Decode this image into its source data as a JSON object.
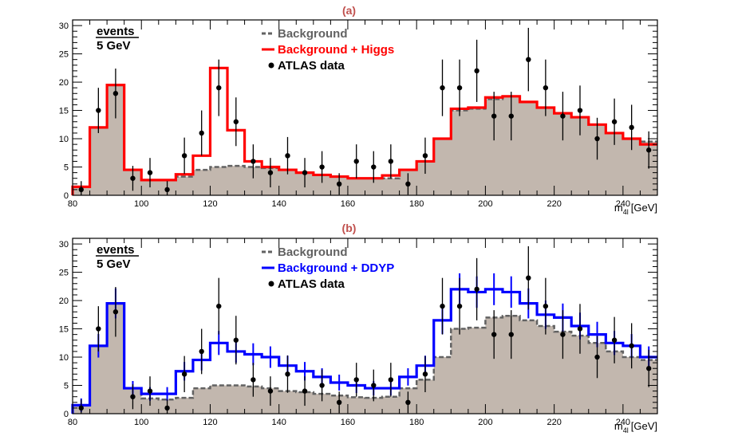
{
  "chart_data": [
    {
      "type": "histogram",
      "panel_label": "(a)",
      "xlabel": "m",
      "xlabel_sub": "4l",
      "xlabel_unit": "[GeV]",
      "ylabel_num": "events",
      "ylabel_den": "5 GeV",
      "xlim": [
        80,
        250
      ],
      "ylim": [
        0,
        31
      ],
      "x_ticks": [
        80,
        100,
        120,
        140,
        160,
        180,
        200,
        220,
        240
      ],
      "y_ticks": [
        0,
        5,
        10,
        15,
        20,
        25,
        30
      ],
      "bin_edges": [
        80,
        85,
        90,
        95,
        100,
        105,
        110,
        115,
        120,
        125,
        130,
        135,
        140,
        145,
        150,
        155,
        160,
        165,
        170,
        175,
        180,
        185,
        190,
        195,
        200,
        205,
        210,
        215,
        220,
        225,
        230,
        235,
        240,
        245,
        250
      ],
      "series": [
        {
          "name": "Background",
          "style": "filled-dashed",
          "values": [
            1.5,
            12,
            19.5,
            4.5,
            2.7,
            2.7,
            3.3,
            4.5,
            5,
            5.2,
            5,
            4.8,
            4.5,
            4,
            3.6,
            3.3,
            3,
            3,
            3,
            4.5,
            6,
            10,
            15,
            15.3,
            17,
            17.5,
            16.5,
            15.5,
            14.5,
            13.8,
            12.5,
            11,
            10,
            9.5
          ]
        },
        {
          "name": "Background + Higgs",
          "style": "step",
          "values": [
            1.5,
            12,
            19.5,
            4.5,
            2.7,
            2.7,
            3.7,
            7,
            22.5,
            11.5,
            6,
            5,
            4.5,
            4,
            3.6,
            3.3,
            3,
            3,
            3.5,
            4.5,
            6,
            10,
            15.3,
            15.5,
            17.3,
            17.5,
            16.5,
            15.5,
            14.5,
            13.8,
            12.5,
            11,
            10,
            9
          ]
        }
      ],
      "data_points": {
        "name": "ATLAS data",
        "x": [
          82.5,
          87.5,
          92.5,
          97.5,
          102.5,
          107.5,
          112.5,
          117.5,
          122.5,
          127.5,
          132.5,
          137.5,
          142.5,
          147.5,
          152.5,
          157.5,
          162.5,
          167.5,
          172.5,
          177.5,
          182.5,
          187.5,
          192.5,
          197.5,
          202.5,
          207.5,
          212.5,
          217.5,
          222.5,
          227.5,
          232.5,
          237.5,
          242.5,
          247.5
        ],
        "y": [
          1,
          15,
          18,
          3,
          4,
          1,
          7,
          11,
          19,
          13,
          6,
          4,
          7,
          4,
          5,
          2,
          6,
          5,
          6,
          2,
          7,
          19,
          19,
          22,
          14,
          14,
          24,
          19,
          14,
          15,
          10,
          13,
          12,
          8
        ],
        "err": [
          1.5,
          4,
          4.4,
          2.2,
          2.6,
          1.5,
          3.2,
          4,
          5,
          4.3,
          3,
          2.6,
          3.3,
          2.6,
          2.8,
          1.9,
          3,
          2.8,
          3,
          1.9,
          3.2,
          5,
          5,
          5.5,
          4.3,
          4.3,
          5.6,
          5,
          4.3,
          4.4,
          3.7,
          4.1,
          4,
          3.3
        ]
      },
      "legend": [
        {
          "label": "Background",
          "style": "dashed"
        },
        {
          "label": "Background + Higgs",
          "style": "solid"
        },
        {
          "label": "ATLAS data",
          "style": "marker"
        }
      ],
      "colors": {
        "fill": "#c2b7ae",
        "background": "#626262",
        "signal": "#ff0000",
        "data": "#000000",
        "panel_label": "#c0504d"
      }
    },
    {
      "type": "histogram",
      "panel_label": "(b)",
      "xlabel": "m",
      "xlabel_sub": "4l",
      "xlabel_unit": "[GeV]",
      "ylabel_num": "events",
      "ylabel_den": "5 GeV",
      "xlim": [
        80,
        250
      ],
      "ylim": [
        0,
        31
      ],
      "x_ticks": [
        80,
        100,
        120,
        140,
        160,
        180,
        200,
        220,
        240
      ],
      "y_ticks": [
        0,
        5,
        10,
        15,
        20,
        25,
        30
      ],
      "bin_edges": [
        80,
        85,
        90,
        95,
        100,
        105,
        110,
        115,
        120,
        125,
        130,
        135,
        140,
        145,
        150,
        155,
        160,
        165,
        170,
        175,
        180,
        185,
        190,
        195,
        200,
        205,
        210,
        215,
        220,
        225,
        230,
        235,
        240,
        245,
        250
      ],
      "series": [
        {
          "name": "Background",
          "style": "filled-dashed",
          "values": [
            1.5,
            12,
            19.5,
            4.5,
            2.7,
            2.5,
            2.8,
            4.5,
            5,
            5,
            4.8,
            4.5,
            4,
            3.8,
            3.5,
            3.2,
            2.9,
            2.8,
            3,
            4.5,
            6,
            10,
            15,
            15.2,
            17,
            17.3,
            16.5,
            15.5,
            14.5,
            13.8,
            12.5,
            11,
            10,
            9.5
          ]
        },
        {
          "name": "Background + DDYP",
          "style": "step",
          "values": [
            1.5,
            12,
            19.5,
            4.5,
            3.5,
            3.5,
            7.5,
            9.5,
            12.5,
            11,
            10.5,
            10,
            8.5,
            7.5,
            6.5,
            5.5,
            5,
            4.5,
            4.5,
            6.5,
            8.5,
            16.5,
            22,
            21.5,
            22,
            21.5,
            19.5,
            17.5,
            17,
            15.5,
            14,
            12.5,
            12,
            10
          ]
        }
      ],
      "data_points": {
        "name": "ATLAS data",
        "x": [
          82.5,
          87.5,
          92.5,
          97.5,
          102.5,
          107.5,
          112.5,
          117.5,
          122.5,
          127.5,
          132.5,
          137.5,
          142.5,
          147.5,
          152.5,
          157.5,
          162.5,
          167.5,
          172.5,
          177.5,
          182.5,
          187.5,
          192.5,
          197.5,
          202.5,
          207.5,
          212.5,
          217.5,
          222.5,
          227.5,
          232.5,
          237.5,
          242.5,
          247.5
        ],
        "y": [
          1,
          15,
          18,
          3,
          4,
          1,
          7,
          11,
          19,
          13,
          6,
          4,
          7,
          4,
          5,
          2,
          6,
          5,
          6,
          2,
          7,
          19,
          19,
          22,
          14,
          14,
          24,
          19,
          14,
          15,
          10,
          13,
          12,
          8
        ],
        "err": [
          1.5,
          4,
          4.4,
          2.2,
          2.6,
          1.5,
          3.2,
          4,
          5,
          4.3,
          3,
          2.6,
          3.3,
          2.6,
          2.8,
          1.9,
          3,
          2.8,
          3,
          1.9,
          3.2,
          5,
          5,
          5.5,
          4.3,
          4.3,
          5.6,
          5,
          4.3,
          4.4,
          3.7,
          4.1,
          4,
          3.3
        ]
      },
      "legend": [
        {
          "label": "Background",
          "style": "dashed"
        },
        {
          "label": "Background + DDYP",
          "style": "solid"
        },
        {
          "label": "ATLAS data",
          "style": "marker"
        }
      ],
      "colors": {
        "fill": "#c2b7ae",
        "background": "#626262",
        "signal": "#0000ff",
        "data": "#000000",
        "panel_label": "#c0504d"
      }
    }
  ]
}
